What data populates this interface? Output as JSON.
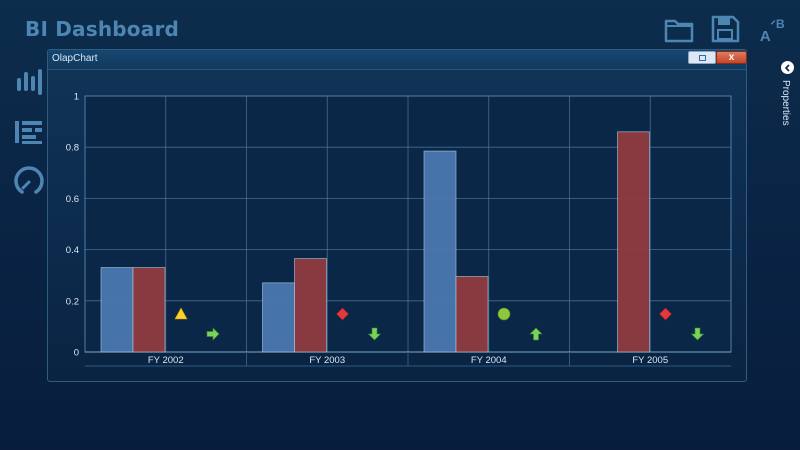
{
  "app": {
    "title": "BI Dashboard"
  },
  "toolbar": {
    "icons": [
      "open-folder-icon",
      "save-icon",
      "font-size-icon"
    ]
  },
  "left_nav": {
    "icons": [
      "bar-chart-icon",
      "list-icon",
      "gauge-icon"
    ]
  },
  "properties_panel": {
    "label": "Properties",
    "icon": "chevron-left-icon"
  },
  "window": {
    "title": "OlapChart",
    "close_label": "x"
  },
  "colors": {
    "series_blue": "#4a78b0",
    "series_red": "#8f3c40",
    "gridline": "#4e7fa8"
  },
  "chart_data": {
    "type": "bar",
    "categories": [
      "FY 2002",
      "FY 2003",
      "FY 2004",
      "FY 2005"
    ],
    "series": [
      {
        "values": [
          0.33,
          0.27,
          0.785,
          0
        ]
      },
      {
        "values": [
          0.33,
          0.365,
          0.295,
          0.86
        ]
      }
    ],
    "ylim": [
      0,
      1
    ],
    "y_ticks": [
      "0",
      "0.2",
      "0.4",
      "0.6",
      "0.8",
      "1"
    ],
    "grid": true,
    "kpi_indicators": [
      {
        "status": "warning-triangle",
        "trend": "arrow-right"
      },
      {
        "status": "red-diamond",
        "trend": "arrow-down"
      },
      {
        "status": "green-circle",
        "trend": "arrow-up"
      },
      {
        "status": "red-diamond",
        "trend": "arrow-down"
      }
    ]
  }
}
